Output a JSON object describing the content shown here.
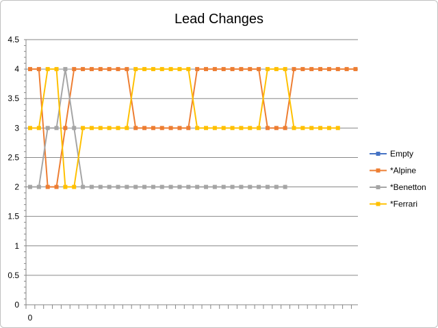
{
  "chart_data": {
    "type": "line",
    "title": "Lead Changes",
    "xlabel": "",
    "ylabel": "",
    "ylim": [
      0,
      4.5
    ],
    "y_ticks": [
      0,
      0.5,
      1,
      1.5,
      2,
      2.5,
      3,
      3.5,
      4,
      4.5
    ],
    "y_tick_labels": [
      "0",
      "0.5",
      "1",
      "1.5",
      "2",
      "2.5",
      "3",
      "3.5",
      "4",
      "4.5"
    ],
    "x_ticks": [
      0
    ],
    "x_tick_labels": [
      "0"
    ],
    "xlim": [
      0,
      38
    ],
    "grid": "horizontal",
    "legend_position": "right",
    "series": [
      {
        "name": "Empty",
        "color": "#4472c4",
        "values": []
      },
      {
        "name": "*Alpine",
        "color": "#ed7d31",
        "values": [
          4,
          4,
          2,
          2,
          3,
          4,
          4,
          4,
          4,
          4,
          4,
          4,
          3,
          3,
          3,
          3,
          3,
          3,
          3,
          4,
          4,
          4,
          4,
          4,
          4,
          4,
          4,
          3,
          3,
          3,
          4,
          4,
          4,
          4,
          4,
          4,
          4,
          4
        ]
      },
      {
        "name": "*Benetton",
        "color": "#a5a5a5",
        "values": [
          2,
          2,
          3,
          3,
          4,
          3,
          2,
          2,
          2,
          2,
          2,
          2,
          2,
          2,
          2,
          2,
          2,
          2,
          2,
          2,
          2,
          2,
          2,
          2,
          2,
          2,
          2,
          2,
          2,
          2
        ]
      },
      {
        "name": "*Ferrari",
        "color": "#ffc000",
        "values": [
          3,
          3,
          4,
          4,
          2,
          2,
          3,
          3,
          3,
          3,
          3,
          3,
          4,
          4,
          4,
          4,
          4,
          4,
          4,
          3,
          3,
          3,
          3,
          3,
          3,
          3,
          3,
          4,
          4,
          4,
          3,
          3,
          3,
          3,
          3,
          3
        ]
      }
    ]
  }
}
